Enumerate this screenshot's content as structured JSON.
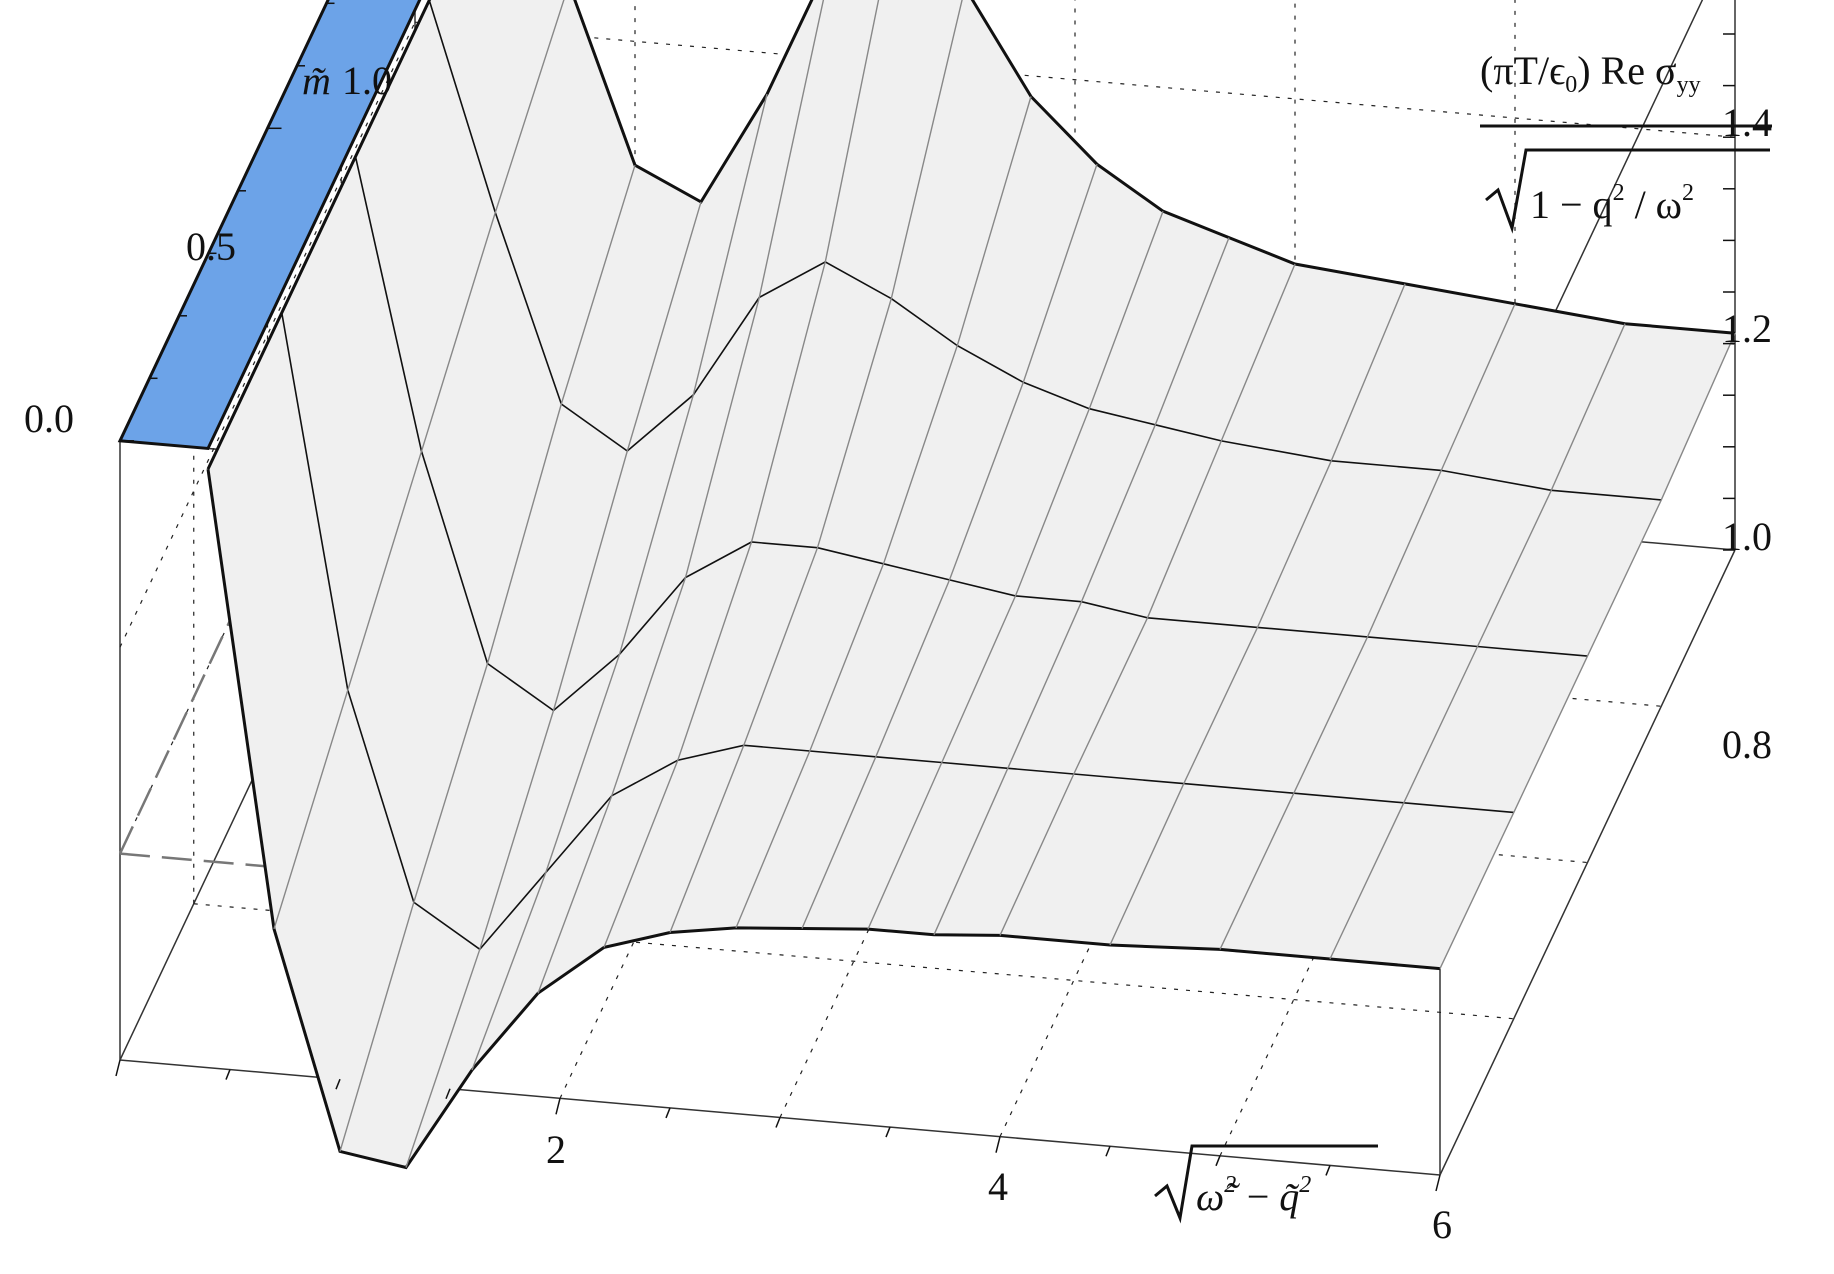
{
  "chart_data": {
    "type": "surface3d",
    "x_axis": {
      "label_radicand_a": "ω̃",
      "label_radicand_a_exp": "2",
      "label_op": "−",
      "label_radicand_b": "q̃",
      "label_radicand_b_exp": "2",
      "ticks": [
        2,
        4,
        6
      ],
      "range": [
        0,
        6
      ]
    },
    "y_axis": {
      "symbol": "m̃",
      "ticks": [
        "0.0",
        "0.5",
        "1.0"
      ],
      "range": [
        0,
        1
      ]
    },
    "z_axis": {
      "label_numerator_pre": "(πT/ϵ",
      "label_numerator_sub": "0",
      "label_numerator_post": ") Re σ",
      "label_numerator_sub2": "yy",
      "label_denominator_a": "1 − q",
      "label_denominator_exp1": "2",
      "label_denominator_mid": " / ω",
      "label_denominator_exp2": "2",
      "ticks": [
        "0.8",
        "1.0",
        "1.2",
        "1.4"
      ],
      "range": [
        0.8,
        1.4
      ]
    },
    "m_values": [
      0.0,
      0.25,
      0.5,
      0.75,
      1.0
    ],
    "x_values": [
      0.4,
      0.7,
      1.0,
      1.3,
      1.6,
      1.9,
      2.2,
      2.5,
      2.8,
      3.1,
      3.4,
      3.7,
      4.0,
      4.5,
      5.0,
      5.5,
      6.0
    ],
    "surface_z": [
      [
        1.38,
        0.94,
        0.73,
        0.72,
        0.82,
        0.9,
        0.95,
        0.97,
        0.98,
        0.985,
        0.99,
        0.99,
        0.995,
        0.995,
        1.0,
        1.0,
        1.0
      ],
      [
        1.38,
        1.02,
        0.82,
        0.78,
        0.86,
        0.94,
        0.98,
        1.0,
        1.0,
        1.0,
        1.0,
        1.0,
        1.0,
        1.0,
        1.0,
        1.0,
        1.0
      ],
      [
        1.38,
        1.1,
        0.9,
        0.86,
        0.92,
        1.0,
        1.04,
        1.04,
        1.03,
        1.02,
        1.01,
        1.01,
        1.0,
        1.0,
        1.0,
        1.0,
        1.0
      ],
      [
        1.38,
        1.18,
        1.0,
        0.96,
        1.02,
        1.12,
        1.16,
        1.13,
        1.09,
        1.06,
        1.04,
        1.03,
        1.02,
        1.01,
        1.01,
        1.0,
        1.0
      ],
      [
        1.38,
        1.25,
        1.08,
        1.05,
        1.16,
        1.3,
        1.36,
        1.28,
        1.18,
        1.12,
        1.08,
        1.06,
        1.04,
        1.03,
        1.02,
        1.01,
        1.01
      ]
    ],
    "colors": {
      "top_face": "#6ca3e8",
      "surface": "#f0f0f0",
      "edge": "#111111"
    }
  }
}
